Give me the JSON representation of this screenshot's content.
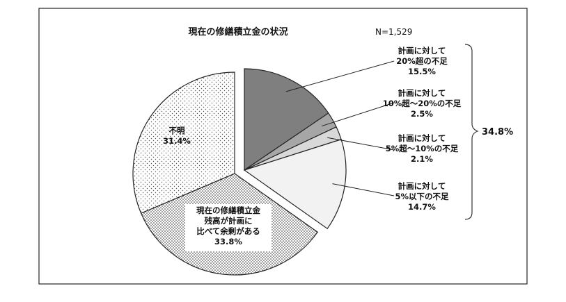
{
  "chart_data": {
    "type": "pie",
    "title": "現在の修繕積立金の状況",
    "sample_size_label": "N=1,529",
    "group_label": "34.8%",
    "exploded_slices": [
      0,
      1,
      2,
      3
    ],
    "slices": [
      {
        "label_lines": [
          "計画に対して",
          "20%超の不足",
          "15.5%"
        ],
        "value": 15.5,
        "fill": "#7f7f7f",
        "pattern": "solid"
      },
      {
        "label_lines": [
          "計画に対して",
          "10%超～20%の不足",
          "2.5%"
        ],
        "value": 2.5,
        "fill": "#a6a6a6",
        "pattern": "solid"
      },
      {
        "label_lines": [
          "計画に対して",
          "5%超～10%の不足",
          "2.1%"
        ],
        "value": 2.1,
        "fill": "#d9d9d9",
        "pattern": "solid"
      },
      {
        "label_lines": [
          "計画に対して",
          "5%以下の不足",
          "14.7%"
        ],
        "value": 14.7,
        "fill": "#f2f2f2",
        "pattern": "solid"
      },
      {
        "label_lines": [
          "現在の修繕積立金",
          "残高が計画に",
          "比べて余剰がある",
          "33.8%"
        ],
        "value": 33.8,
        "fill": "#ffffff",
        "pattern": "dense-dots"
      },
      {
        "label_lines": [
          "不明",
          "31.4%"
        ],
        "value": 31.4,
        "fill": "#ffffff",
        "pattern": "sparse-dots"
      }
    ]
  }
}
